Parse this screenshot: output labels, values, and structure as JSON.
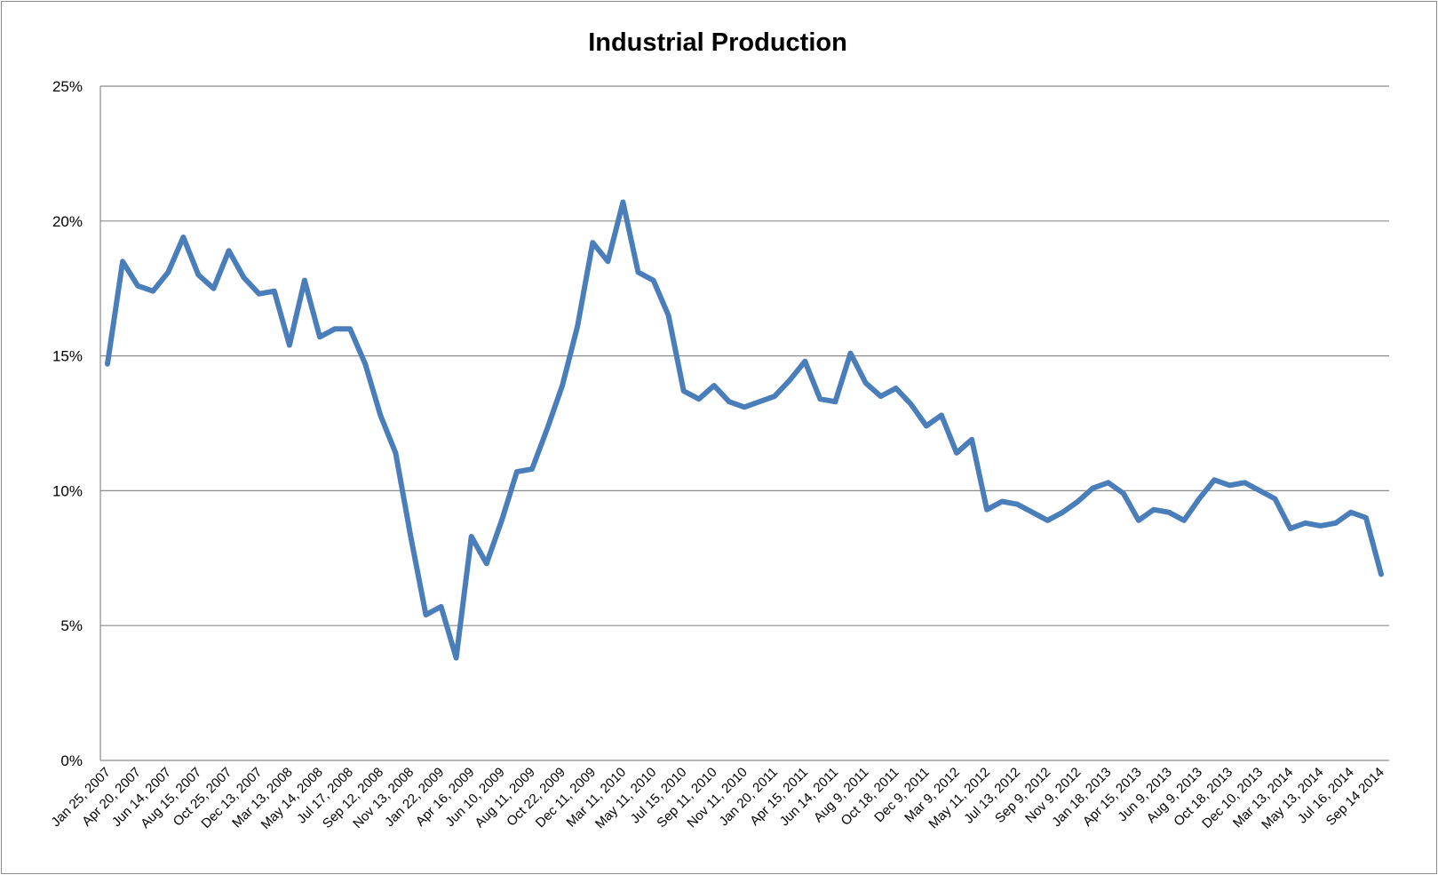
{
  "chart_data": {
    "type": "line",
    "title": "Industrial Production",
    "xlabel": "",
    "ylabel": "",
    "ylim": [
      0,
      25
    ],
    "yticks": [
      "0%",
      "5%",
      "10%",
      "15%",
      "20%",
      "25%"
    ],
    "ytick_values": [
      0,
      5,
      10,
      15,
      20,
      25
    ],
    "grid": true,
    "legend": "none",
    "label_every": 2,
    "x_labels": [
      "Jan 25, 2007",
      "Apr 20, 2007",
      "Jun 14, 2007",
      "Aug 15, 2007",
      "Oct 25, 2007",
      "Dec 13, 2007",
      "Mar 13, 2008",
      "May 14, 2008",
      "Jul 17, 2008",
      "Sep 12, 2008",
      "Nov 13, 2008",
      "Jan 22, 2009",
      "Apr 16, 2009",
      "Jun 10, 2009",
      "Aug 11, 2009",
      "Oct 22, 2009",
      "Dec 11, 2009",
      "Mar 11, 2010",
      "May 11, 2010",
      "Jul 15, 2010",
      "Sep 11, 2010",
      "Nov 11, 2010",
      "Jan 20, 2011",
      "Apr 15, 2011",
      "Jun 14, 2011",
      "Aug 9, 2011",
      "Oct 18, 2011",
      "Dec 9, 2011",
      "Mar 9, 2012",
      "May 11, 2012",
      "Jul 13, 2012",
      "Sep 9, 2012",
      "Nov 9, 2012",
      "Jan 18, 2013",
      "Apr 15, 2013",
      "Jun 9, 2013",
      "Aug 9, 2013",
      "Oct 18, 2013",
      "Dec 10, 2013",
      "Mar 13, 2014",
      "May 13, 2014",
      "Jul 16, 2014",
      "Sep 14 2014"
    ],
    "series": [
      {
        "name": "Industrial Production",
        "color": "#4a7ebb",
        "values": [
          14.7,
          18.5,
          17.6,
          17.4,
          18.1,
          19.4,
          18.0,
          17.5,
          18.9,
          17.9,
          17.3,
          17.4,
          15.4,
          17.8,
          15.7,
          16.0,
          16.0,
          14.7,
          12.8,
          11.4,
          8.3,
          5.4,
          5.7,
          3.8,
          8.3,
          7.3,
          8.9,
          10.7,
          10.8,
          12.3,
          13.9,
          16.1,
          19.2,
          18.5,
          20.7,
          18.1,
          17.8,
          16.5,
          13.7,
          13.4,
          13.9,
          13.3,
          13.1,
          13.3,
          13.5,
          14.1,
          14.8,
          13.4,
          13.3,
          15.1,
          14.0,
          13.5,
          13.8,
          13.2,
          12.4,
          12.8,
          11.4,
          11.9,
          9.3,
          9.6,
          9.5,
          9.2,
          8.9,
          9.2,
          9.6,
          10.1,
          10.3,
          9.9,
          8.9,
          9.3,
          9.2,
          8.9,
          9.7,
          10.4,
          10.2,
          10.3,
          10.0,
          9.7,
          8.6,
          8.8,
          8.7,
          8.8,
          9.2,
          9.0,
          6.9
        ]
      }
    ]
  }
}
